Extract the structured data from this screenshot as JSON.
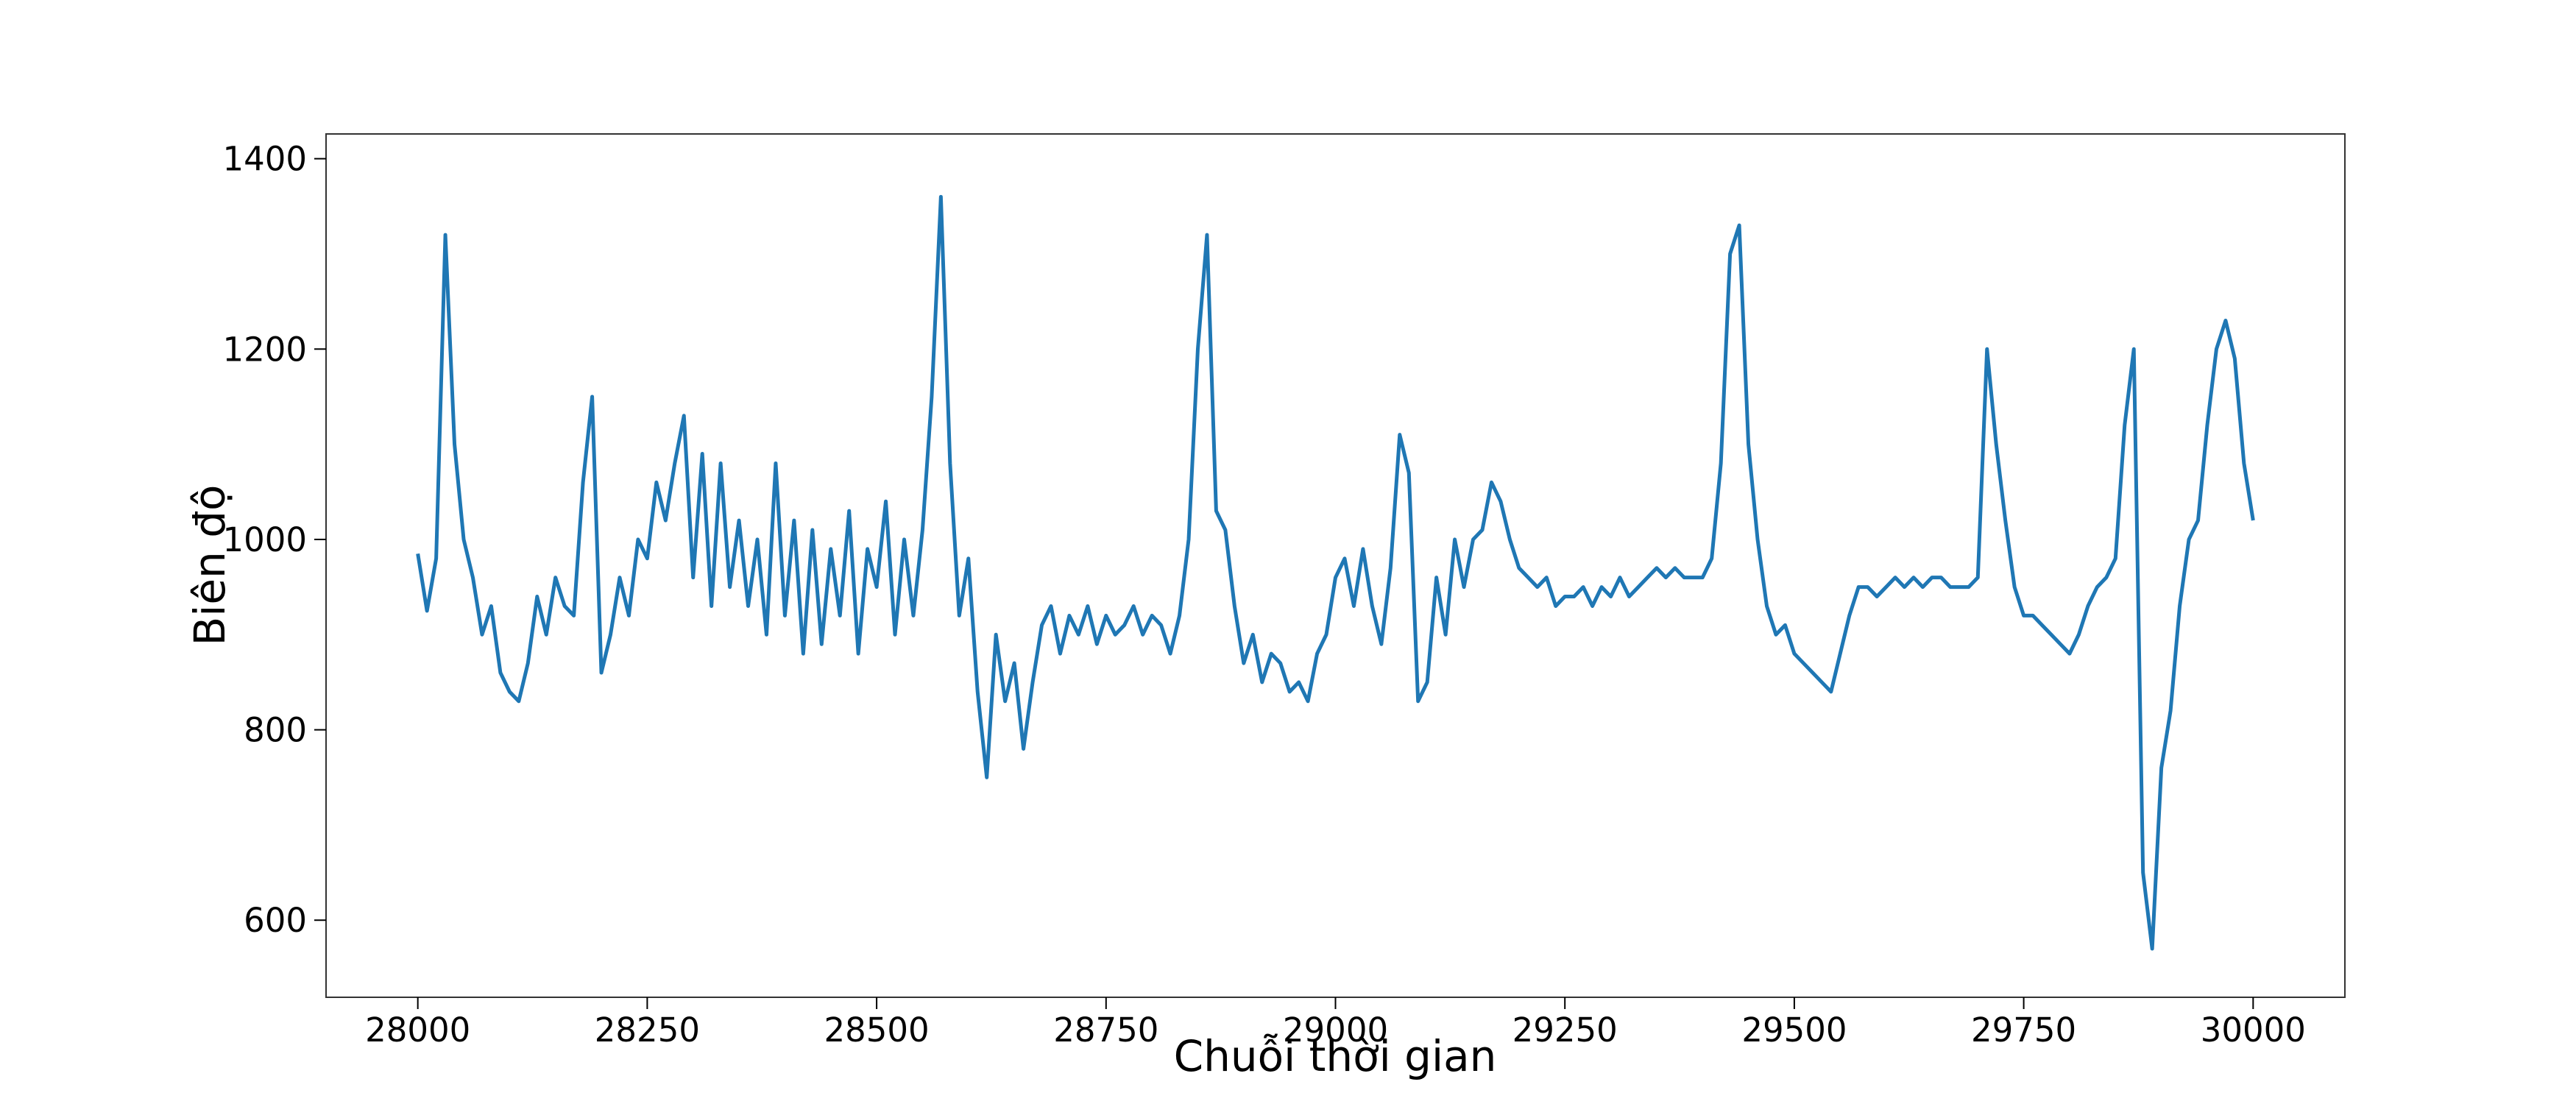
{
  "chart_data": {
    "type": "line",
    "xlabel": "Chuỗi thời gian",
    "ylabel": "Biên độ",
    "color": "#1f77b4",
    "xlim": [
      27900,
      30100
    ],
    "ylim": [
      519,
      1426
    ],
    "xticks": [
      28000,
      28250,
      28500,
      28750,
      29000,
      29250,
      29500,
      29750,
      30000
    ],
    "yticks": [
      600,
      800,
      1000,
      1200,
      1400
    ],
    "x": [
      28000,
      28010,
      28020,
      28030,
      28040,
      28050,
      28060,
      28070,
      28080,
      28090,
      28100,
      28110,
      28120,
      28130,
      28140,
      28150,
      28160,
      28170,
      28180,
      28190,
      28200,
      28210,
      28220,
      28230,
      28240,
      28250,
      28260,
      28270,
      28280,
      28290,
      28300,
      28310,
      28320,
      28330,
      28340,
      28350,
      28360,
      28370,
      28380,
      28390,
      28400,
      28410,
      28420,
      28430,
      28440,
      28450,
      28460,
      28470,
      28480,
      28490,
      28500,
      28510,
      28520,
      28530,
      28540,
      28550,
      28560,
      28570,
      28580,
      28590,
      28600,
      28610,
      28620,
      28630,
      28640,
      28650,
      28660,
      28670,
      28680,
      28690,
      28700,
      28710,
      28720,
      28730,
      28740,
      28750,
      28760,
      28770,
      28780,
      28790,
      28800,
      28810,
      28820,
      28830,
      28840,
      28850,
      28860,
      28870,
      28880,
      28890,
      28900,
      28910,
      28920,
      28930,
      28940,
      28950,
      28960,
      28970,
      28980,
      28990,
      29000,
      29010,
      29020,
      29030,
      29040,
      29050,
      29060,
      29070,
      29080,
      29090,
      29100,
      29110,
      29120,
      29130,
      29140,
      29150,
      29160,
      29170,
      29180,
      29190,
      29200,
      29210,
      29220,
      29230,
      29240,
      29250,
      29260,
      29270,
      29280,
      29290,
      29300,
      29310,
      29320,
      29330,
      29340,
      29350,
      29360,
      29370,
      29380,
      29390,
      29400,
      29410,
      29420,
      29430,
      29440,
      29450,
      29460,
      29470,
      29480,
      29490,
      29500,
      29510,
      29520,
      29530,
      29540,
      29550,
      29560,
      29570,
      29580,
      29590,
      29600,
      29610,
      29620,
      29630,
      29640,
      29650,
      29660,
      29670,
      29680,
      29690,
      29700,
      29710,
      29720,
      29730,
      29740,
      29750,
      29760,
      29770,
      29780,
      29790,
      29800,
      29810,
      29820,
      29830,
      29840,
      29850,
      29860,
      29870,
      29880,
      29890,
      29900,
      29910,
      29920,
      29930,
      29940,
      29950,
      29960,
      29970,
      29980,
      29990,
      30000
    ],
    "values": [
      985,
      925,
      980,
      1320,
      1100,
      1000,
      960,
      900,
      930,
      860,
      840,
      830,
      870,
      940,
      900,
      960,
      930,
      920,
      1060,
      1150,
      860,
      900,
      960,
      920,
      1000,
      980,
      1060,
      1020,
      1080,
      1130,
      960,
      1090,
      930,
      1080,
      950,
      1020,
      930,
      1000,
      900,
      1080,
      920,
      1020,
      880,
      1010,
      890,
      990,
      920,
      1030,
      880,
      990,
      950,
      1040,
      900,
      1000,
      920,
      1010,
      1150,
      1360,
      1080,
      920,
      980,
      840,
      750,
      900,
      830,
      870,
      780,
      850,
      910,
      930,
      880,
      920,
      900,
      930,
      890,
      920,
      900,
      910,
      930,
      900,
      920,
      910,
      880,
      920,
      1000,
      1200,
      1320,
      1030,
      1010,
      930,
      870,
      900,
      850,
      880,
      870,
      840,
      850,
      830,
      880,
      900,
      960,
      980,
      930,
      990,
      930,
      890,
      970,
      1110,
      1070,
      830,
      850,
      960,
      900,
      1000,
      950,
      1000,
      1010,
      1060,
      1040,
      1000,
      970,
      960,
      950,
      960,
      930,
      940,
      940,
      950,
      930,
      950,
      940,
      960,
      940,
      950,
      960,
      970,
      960,
      970,
      960,
      960,
      960,
      980,
      1080,
      1300,
      1330,
      1100,
      1000,
      930,
      900,
      910,
      880,
      870,
      860,
      850,
      840,
      880,
      920,
      950,
      950,
      940,
      950,
      960,
      950,
      960,
      950,
      960,
      960,
      950,
      950,
      950,
      960,
      1200,
      1100,
      1020,
      950,
      920,
      920,
      910,
      900,
      890,
      880,
      900,
      930,
      950,
      960,
      980,
      1120,
      1200,
      650,
      570,
      760,
      820,
      930,
      1000,
      1020,
      1120,
      1200,
      1230,
      1190,
      1080,
      1020
    ]
  }
}
